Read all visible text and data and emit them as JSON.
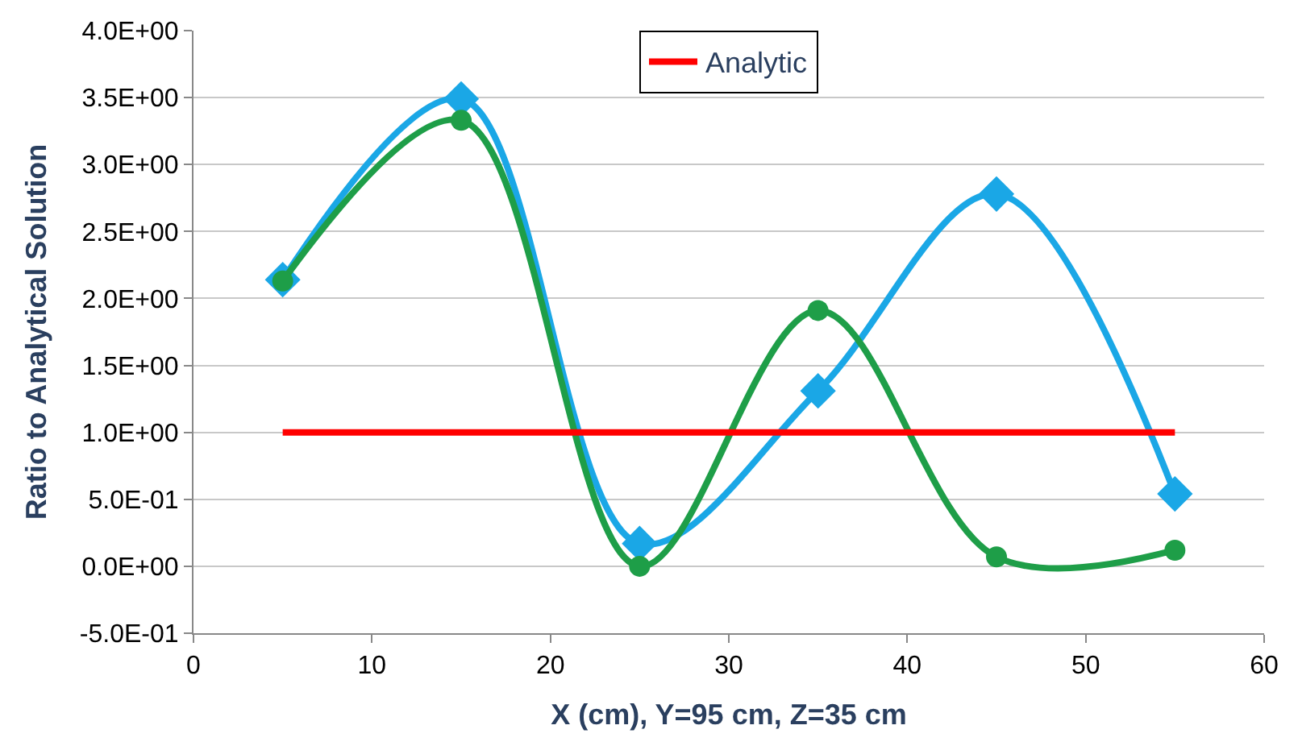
{
  "chart_data": {
    "type": "line",
    "xlabel": "X (cm), Y=95 cm, Z=35 cm",
    "ylabel": "Ratio to Analytical Solution",
    "x": [
      5,
      15,
      25,
      35,
      45,
      55
    ],
    "series": [
      {
        "color": "#1aa7e6",
        "marker": "diamond",
        "values": [
          2.14,
          3.49,
          0.17,
          1.31,
          2.78,
          0.54
        ]
      },
      {
        "color": "#1e9e48",
        "marker": "circle",
        "values": [
          2.13,
          3.33,
          0.0,
          1.91,
          0.07,
          0.12
        ]
      },
      {
        "name": "Analytic",
        "color": "#ff0000",
        "marker": "none",
        "values": [
          1.0,
          1.0,
          1.0,
          1.0,
          1.0,
          1.0
        ]
      }
    ],
    "xlim": [
      0,
      60
    ],
    "xticks": [
      0,
      10,
      20,
      30,
      40,
      50,
      60
    ],
    "ylim": [
      -0.5,
      4.0
    ],
    "yticks": [
      {
        "value": -0.5,
        "label": "-5.0E-01"
      },
      {
        "value": 0,
        "label": "0.0E+00"
      },
      {
        "value": 0.5,
        "label": "5.0E-01"
      },
      {
        "value": 1.0,
        "label": "1.0E+00"
      },
      {
        "value": 1.5,
        "label": "1.5E+00"
      },
      {
        "value": 2.0,
        "label": "2.0E+00"
      },
      {
        "value": 2.5,
        "label": "2.5E+00"
      },
      {
        "value": 3.0,
        "label": "3.0E+00"
      },
      {
        "value": 3.5,
        "label": "3.5E+00"
      },
      {
        "value": 4.0,
        "label": "4.0E+00"
      }
    ],
    "grid": "y",
    "legend": "top"
  }
}
